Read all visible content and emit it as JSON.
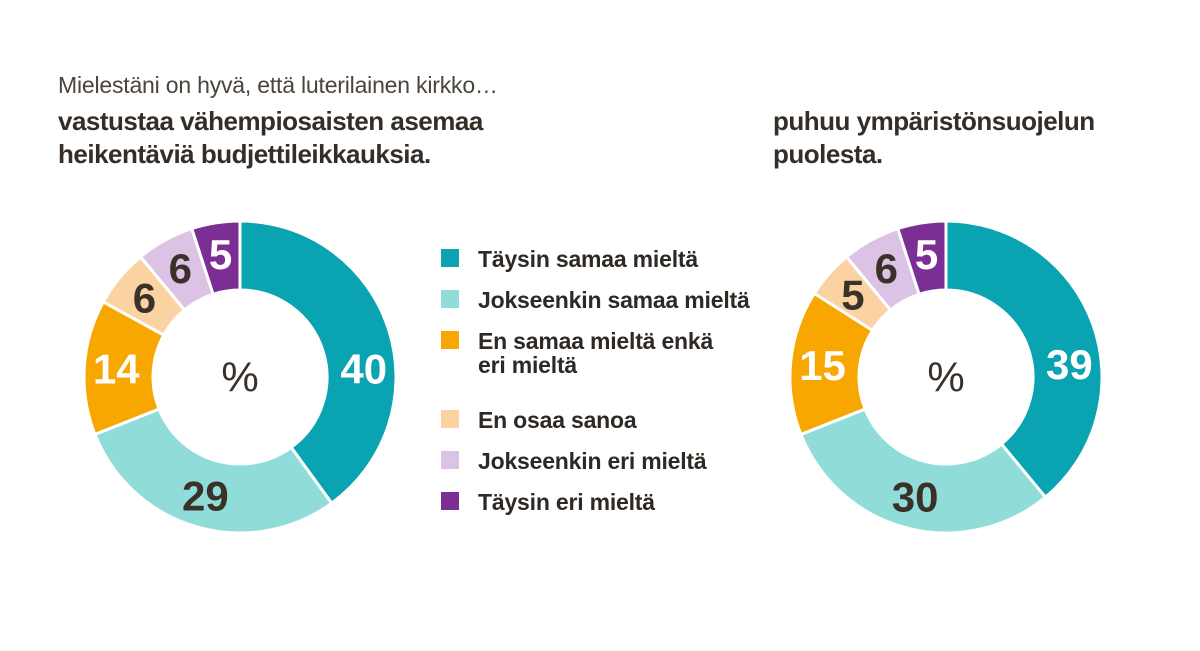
{
  "intro_title": "Mielestäni on hyvä, että luterilainen kirkko…",
  "colors": {
    "background": "#ffffff",
    "intro_text": "#4b443c",
    "subtitle_text": "#352e27",
    "legend_text": "#2e2924",
    "value_label_dark": "#3a3129",
    "value_label_light": "#ffffff",
    "slice_separator": "#ffffff"
  },
  "legend": {
    "items": [
      {
        "label": "Täysin samaa mieltä",
        "color": "#09a3b2"
      },
      {
        "label": "Jokseenkin samaa mieltä",
        "color": "#8fdcd8"
      },
      {
        "label": "En samaa mieltä enkä\neri mieltä",
        "color": "#f8a600"
      },
      {
        "label": "En osaa sanoa",
        "color": "#fbd3a2"
      },
      {
        "label": "Jokseenkin eri mieltä",
        "color": "#dcc3e6"
      },
      {
        "label": "Täysin eri mieltä",
        "color": "#7b2e94"
      }
    ]
  },
  "chart_data": [
    {
      "type": "pie",
      "subtype": "donut",
      "title": "vastustaa vähempiosaisten asemaa heikentäviä budjettileikkauksia.",
      "title_lines": [
        "vastustaa vähempiosaisten asemaa",
        "heikentäviä budjettileikkauksia."
      ],
      "center_label": "%",
      "unit": "%",
      "total": 100,
      "inner_radius_ratio": 0.56,
      "start_angle_deg": 0,
      "direction": "clockwise",
      "categories": [
        "Täysin samaa mieltä",
        "Jokseenkin samaa mieltä",
        "En samaa mieltä enkä eri mieltä",
        "En osaa sanoa",
        "Jokseenkin eri mieltä",
        "Täysin eri mieltä"
      ],
      "values": [
        40,
        29,
        14,
        6,
        6,
        5
      ],
      "colors": [
        "#09a3b2",
        "#8fdcd8",
        "#f8a600",
        "#fbd3a2",
        "#dcc3e6",
        "#7b2e94"
      ],
      "value_label_colors": [
        "#ffffff",
        "#3a3129",
        "#ffffff",
        "#3a3129",
        "#3a3129",
        "#ffffff"
      ]
    },
    {
      "type": "pie",
      "subtype": "donut",
      "title": "puhuu ympäristönsuojelun puolesta.",
      "title_lines": [
        "puhuu ympäristönsuojelun",
        "puolesta."
      ],
      "center_label": "%",
      "unit": "%",
      "total": 100,
      "inner_radius_ratio": 0.56,
      "start_angle_deg": 0,
      "direction": "clockwise",
      "categories": [
        "Täysin samaa mieltä",
        "Jokseenkin samaa mieltä",
        "En samaa mieltä enkä eri mieltä",
        "En osaa sanoa",
        "Jokseenkin eri mieltä",
        "Täysin eri mieltä"
      ],
      "values": [
        39,
        30,
        15,
        5,
        6,
        5
      ],
      "colors": [
        "#09a3b2",
        "#8fdcd8",
        "#f8a600",
        "#fbd3a2",
        "#dcc3e6",
        "#7b2e94"
      ],
      "value_label_colors": [
        "#ffffff",
        "#3a3129",
        "#ffffff",
        "#3a3129",
        "#3a3129",
        "#ffffff"
      ]
    }
  ]
}
